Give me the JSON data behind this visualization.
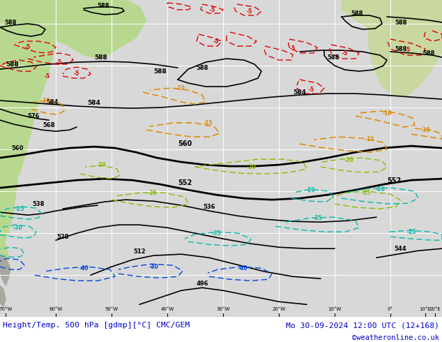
{
  "title_left": "Height/Temp. 500 hPa [gdmp][°C] CMC/GEM",
  "title_right": "Mo 30-09-2024 12:00 UTC (12+168)",
  "credit": "©weatheronline.co.uk",
  "ocean_color": "#d8d8d8",
  "land_color_sa": "#b8d890",
  "land_color_af": "#c8d8a0",
  "land_color_eu": "#c8d4a0",
  "grid_color": "#ffffff",
  "fig_bg": "#ffffff",
  "title_color": "#0000cc",
  "credit_color": "#0000cc",
  "bottom_bar_color": "#c8c8c8",
  "col_black": "#000000",
  "col_red": "#dd0000",
  "col_orange": "#dd8800",
  "col_limegreen": "#88bb00",
  "col_cyan": "#00bbaa",
  "col_blue": "#0044dd"
}
